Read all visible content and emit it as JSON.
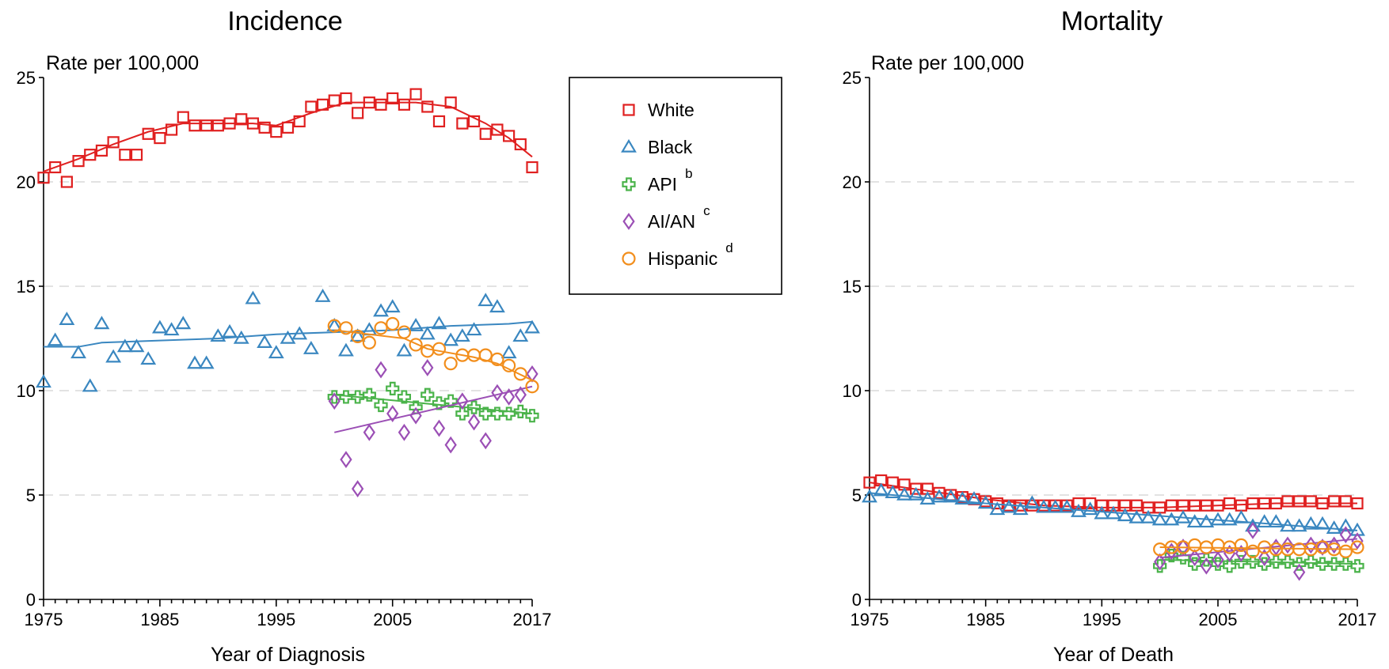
{
  "legend": [
    {
      "name": "White",
      "marker": "square",
      "color": "#e02020",
      "sup": ""
    },
    {
      "name": "Black",
      "marker": "triangle",
      "color": "#3a87c0",
      "sup": ""
    },
    {
      "name": "API",
      "marker": "plus",
      "color": "#4ab34a",
      "sup": "b"
    },
    {
      "name": "AI/AN",
      "marker": "diamond",
      "color": "#9b4fb5",
      "sup": "c"
    },
    {
      "name": "Hispanic",
      "marker": "circle",
      "color": "#f28e1c",
      "sup": "d"
    }
  ],
  "chart_data": [
    {
      "id": "incidence",
      "type": "scatter",
      "title": "Incidence",
      "ylabel": "Rate per 100,000",
      "xlabel": "Year of Diagnosis",
      "xlim": [
        1975,
        2017
      ],
      "ylim": [
        0,
        25
      ],
      "xticks": [
        "1975",
        "1985",
        "1995",
        "2005",
        "2017"
      ],
      "yticks": [
        "0",
        "5",
        "10",
        "15",
        "20",
        "25"
      ],
      "grid": true,
      "legend_position": "right",
      "series": [
        {
          "name": "White",
          "marker": "square",
          "color": "#e02020",
          "x": [
            1975,
            1976,
            1977,
            1978,
            1979,
            1980,
            1981,
            1982,
            1983,
            1984,
            1985,
            1986,
            1987,
            1988,
            1989,
            1990,
            1991,
            1992,
            1993,
            1994,
            1995,
            1996,
            1997,
            1998,
            1999,
            2000,
            2001,
            2002,
            2003,
            2004,
            2005,
            2006,
            2007,
            2008,
            2009,
            2010,
            2011,
            2012,
            2013,
            2014,
            2015,
            2016,
            2017
          ],
          "y": [
            20.2,
            20.7,
            20.0,
            21.0,
            21.3,
            21.5,
            21.9,
            21.3,
            21.3,
            22.3,
            22.1,
            22.5,
            23.1,
            22.7,
            22.7,
            22.7,
            22.8,
            23.0,
            22.8,
            22.6,
            22.4,
            22.6,
            22.9,
            23.6,
            23.7,
            23.9,
            24.0,
            23.3,
            23.8,
            23.7,
            24.0,
            23.7,
            24.2,
            23.6,
            22.9,
            23.8,
            22.8,
            22.9,
            22.3,
            22.5,
            22.2,
            21.8,
            20.7
          ],
          "trend_x": [
            1975,
            1978,
            1981,
            1984,
            1987,
            1990,
            1993,
            1995,
            1998,
            2001,
            2004,
            2007,
            2010,
            2013,
            2015,
            2017
          ],
          "trend_y": [
            20.5,
            21.1,
            21.8,
            22.4,
            22.8,
            22.8,
            22.8,
            22.7,
            23.3,
            23.8,
            23.8,
            23.8,
            23.6,
            22.8,
            22.1,
            21.2
          ]
        },
        {
          "name": "Black",
          "marker": "triangle",
          "color": "#3a87c0",
          "x": [
            1975,
            1976,
            1977,
            1978,
            1979,
            1980,
            1981,
            1982,
            1983,
            1984,
            1985,
            1986,
            1987,
            1988,
            1989,
            1990,
            1991,
            1992,
            1993,
            1994,
            1995,
            1996,
            1997,
            1998,
            1999,
            2000,
            2001,
            2002,
            2003,
            2004,
            2005,
            2006,
            2007,
            2008,
            2009,
            2010,
            2011,
            2012,
            2013,
            2014,
            2015,
            2016,
            2017
          ],
          "y": [
            10.4,
            12.4,
            13.4,
            11.8,
            10.2,
            13.2,
            11.6,
            12.1,
            12.1,
            11.5,
            13.0,
            12.9,
            13.2,
            11.3,
            11.3,
            12.6,
            12.8,
            12.5,
            14.4,
            12.3,
            11.8,
            12.5,
            12.7,
            12.0,
            14.5,
            13.1,
            11.9,
            12.6,
            12.9,
            13.8,
            14.0,
            11.9,
            13.1,
            12.7,
            13.2,
            12.4,
            12.6,
            12.9,
            14.3,
            14.0,
            11.8,
            12.6,
            13.0
          ],
          "trend_x": [
            1975,
            1978,
            1980,
            1985,
            1990,
            1995,
            2000,
            2005,
            2010,
            2015,
            2017
          ],
          "trend_y": [
            12.1,
            12.1,
            12.3,
            12.4,
            12.5,
            12.7,
            12.8,
            12.9,
            13.1,
            13.2,
            13.3
          ]
        },
        {
          "name": "API",
          "marker": "plus",
          "color": "#4ab34a",
          "x": [
            2000,
            2001,
            2002,
            2003,
            2004,
            2005,
            2006,
            2007,
            2008,
            2009,
            2010,
            2011,
            2012,
            2013,
            2014,
            2015,
            2016,
            2017
          ],
          "y": [
            9.7,
            9.7,
            9.7,
            9.8,
            9.3,
            10.1,
            9.7,
            9.2,
            9.8,
            9.4,
            9.5,
            8.9,
            9.2,
            8.9,
            8.9,
            8.9,
            9.0,
            8.8
          ],
          "trend_x": [
            2000,
            2017
          ],
          "trend_y": [
            9.8,
            8.9
          ]
        },
        {
          "name": "AI/AN",
          "marker": "diamond",
          "color": "#9b4fb5",
          "x": [
            2000,
            2001,
            2002,
            2003,
            2004,
            2005,
            2006,
            2007,
            2008,
            2009,
            2010,
            2011,
            2012,
            2013,
            2014,
            2015,
            2016,
            2017
          ],
          "y": [
            9.5,
            6.7,
            5.3,
            8.0,
            11.0,
            8.9,
            8.0,
            8.8,
            11.1,
            8.2,
            7.4,
            9.5,
            8.5,
            7.6,
            9.9,
            9.7,
            9.8,
            10.8
          ],
          "trend_x": [
            2000,
            2017
          ],
          "trend_y": [
            8.0,
            10.2
          ]
        },
        {
          "name": "Hispanic",
          "marker": "circle",
          "color": "#f28e1c",
          "x": [
            2000,
            2001,
            2002,
            2003,
            2004,
            2005,
            2006,
            2007,
            2008,
            2009,
            2010,
            2011,
            2012,
            2013,
            2014,
            2015,
            2016,
            2017
          ],
          "y": [
            13.1,
            13.0,
            12.6,
            12.3,
            13.0,
            13.2,
            12.8,
            12.2,
            11.9,
            12.0,
            11.3,
            11.7,
            11.7,
            11.7,
            11.5,
            11.2,
            10.8,
            10.2
          ],
          "trend_x": [
            2000,
            2006,
            2008,
            2012,
            2014,
            2017
          ],
          "trend_y": [
            12.9,
            12.5,
            12.0,
            11.6,
            11.3,
            10.5
          ]
        }
      ]
    },
    {
      "id": "mortality",
      "type": "scatter",
      "title": "Mortality",
      "ylabel": "Rate per 100,000",
      "xlabel": "Year of Death",
      "xlim": [
        1975,
        2017
      ],
      "ylim": [
        0,
        25
      ],
      "xticks": [
        "1975",
        "1985",
        "1995",
        "2005",
        "2017"
      ],
      "yticks": [
        "0",
        "5",
        "10",
        "15",
        "20",
        "25"
      ],
      "grid": true,
      "series": [
        {
          "name": "White",
          "marker": "square",
          "color": "#e02020",
          "x": [
            1975,
            1976,
            1977,
            1978,
            1979,
            1980,
            1981,
            1982,
            1983,
            1984,
            1985,
            1986,
            1987,
            1988,
            1989,
            1990,
            1991,
            1992,
            1993,
            1994,
            1995,
            1996,
            1997,
            1998,
            1999,
            2000,
            2001,
            2002,
            2003,
            2004,
            2005,
            2006,
            2007,
            2008,
            2009,
            2010,
            2011,
            2012,
            2013,
            2014,
            2015,
            2016,
            2017
          ],
          "y": [
            5.6,
            5.7,
            5.6,
            5.5,
            5.3,
            5.3,
            5.1,
            5.0,
            4.9,
            4.8,
            4.7,
            4.6,
            4.5,
            4.5,
            4.5,
            4.5,
            4.5,
            4.5,
            4.6,
            4.6,
            4.5,
            4.5,
            4.5,
            4.5,
            4.4,
            4.4,
            4.5,
            4.5,
            4.5,
            4.5,
            4.5,
            4.6,
            4.5,
            4.6,
            4.6,
            4.6,
            4.7,
            4.7,
            4.7,
            4.6,
            4.7,
            4.7,
            4.6
          ],
          "trend_x": [
            1975,
            1980,
            1985,
            1990,
            1995,
            2000,
            2005,
            2010,
            2017
          ],
          "trend_y": [
            5.6,
            5.2,
            4.8,
            4.5,
            4.4,
            4.4,
            4.5,
            4.6,
            4.6
          ]
        },
        {
          "name": "Black",
          "marker": "triangle",
          "color": "#3a87c0",
          "x": [
            1975,
            1976,
            1977,
            1978,
            1979,
            1980,
            1981,
            1982,
            1983,
            1984,
            1985,
            1986,
            1987,
            1988,
            1989,
            1990,
            1991,
            1992,
            1993,
            1994,
            1995,
            1996,
            1997,
            1998,
            1999,
            2000,
            2001,
            2002,
            2003,
            2004,
            2005,
            2006,
            2007,
            2008,
            2009,
            2010,
            2011,
            2012,
            2013,
            2014,
            2015,
            2016,
            2017
          ],
          "y": [
            4.9,
            5.2,
            5.1,
            5.0,
            5.0,
            4.8,
            4.9,
            4.9,
            4.8,
            4.8,
            4.6,
            4.3,
            4.4,
            4.3,
            4.6,
            4.4,
            4.4,
            4.4,
            4.2,
            4.3,
            4.1,
            4.1,
            4.0,
            3.9,
            3.9,
            3.8,
            3.8,
            3.9,
            3.7,
            3.7,
            3.8,
            3.8,
            3.9,
            3.5,
            3.7,
            3.7,
            3.5,
            3.5,
            3.6,
            3.6,
            3.4,
            3.5,
            3.3
          ],
          "trend_x": [
            1975,
            1985,
            1995,
            2005,
            2010,
            2017
          ],
          "trend_y": [
            5.1,
            4.6,
            4.2,
            3.8,
            3.6,
            3.3
          ]
        },
        {
          "name": "API",
          "marker": "plus",
          "color": "#4ab34a",
          "x": [
            2000,
            2001,
            2002,
            2003,
            2004,
            2005,
            2006,
            2007,
            2008,
            2009,
            2010,
            2011,
            2012,
            2013,
            2014,
            2015,
            2016,
            2017
          ],
          "y": [
            1.6,
            2.1,
            2.0,
            1.7,
            1.9,
            1.7,
            1.6,
            1.8,
            1.8,
            1.7,
            1.8,
            1.8,
            1.7,
            1.8,
            1.7,
            1.7,
            1.7,
            1.6
          ],
          "trend_x": [
            2000,
            2017
          ],
          "trend_y": [
            1.9,
            1.7
          ]
        },
        {
          "name": "AI/AN",
          "marker": "diamond",
          "color": "#9b4fb5",
          "x": [
            2000,
            2001,
            2002,
            2003,
            2004,
            2005,
            2006,
            2007,
            2008,
            2009,
            2010,
            2011,
            2012,
            2013,
            2014,
            2015,
            2016,
            2017
          ],
          "y": [
            1.8,
            2.3,
            2.5,
            2.0,
            1.6,
            1.9,
            2.2,
            2.2,
            3.3,
            2.0,
            2.5,
            2.6,
            1.3,
            2.6,
            2.5,
            2.6,
            3.1,
            2.8
          ],
          "trend_x": [
            2000,
            2017
          ],
          "trend_y": [
            2.0,
            2.9
          ]
        },
        {
          "name": "Hispanic",
          "marker": "circle",
          "color": "#f28e1c",
          "x": [
            2000,
            2001,
            2002,
            2003,
            2004,
            2005,
            2006,
            2007,
            2008,
            2009,
            2010,
            2011,
            2012,
            2013,
            2014,
            2015,
            2016,
            2017
          ],
          "y": [
            2.4,
            2.5,
            2.5,
            2.6,
            2.5,
            2.6,
            2.5,
            2.6,
            2.3,
            2.5,
            2.4,
            2.4,
            2.4,
            2.4,
            2.5,
            2.4,
            2.3,
            2.5
          ],
          "trend_x": [
            2000,
            2017
          ],
          "trend_y": [
            2.5,
            2.4
          ]
        }
      ]
    }
  ]
}
